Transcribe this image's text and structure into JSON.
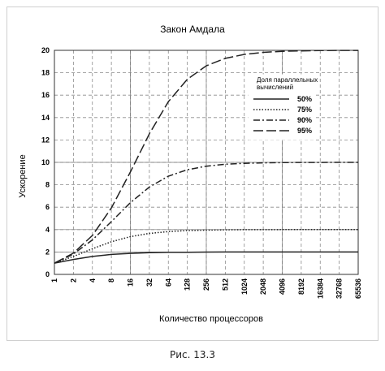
{
  "chart_data": {
    "type": "line",
    "title": "Закон Амдала",
    "xlabel": "Количество процессоров",
    "ylabel": "Ускорение",
    "x_scale": "log2",
    "x": [
      1,
      2,
      4,
      8,
      16,
      32,
      64,
      128,
      256,
      512,
      1024,
      2048,
      4096,
      8192,
      16384,
      32768,
      65536
    ],
    "x_tick_labels": [
      "1",
      "2",
      "4",
      "8",
      "16",
      "32",
      "64",
      "128",
      "256",
      "512",
      "1024",
      "2048",
      "4096",
      "8192",
      "16384",
      "32768",
      "65536"
    ],
    "ylim": [
      0,
      20
    ],
    "y_ticks": [
      0,
      2,
      4,
      6,
      8,
      10,
      12,
      14,
      16,
      18,
      20
    ],
    "grid": true,
    "legend": {
      "title": "Доля параллельных вычислений",
      "placement": "top-right"
    },
    "series": [
      {
        "name": "50%",
        "style": "solid",
        "values": [
          1.0,
          1.33,
          1.6,
          1.78,
          1.88,
          1.94,
          1.97,
          1.98,
          1.99,
          2.0,
          2.0,
          2.0,
          2.0,
          2.0,
          2.0,
          2.0,
          2.0
        ]
      },
      {
        "name": "75%",
        "style": "dotted",
        "values": [
          1.0,
          1.6,
          2.29,
          2.91,
          3.37,
          3.66,
          3.82,
          3.91,
          3.95,
          3.98,
          3.99,
          3.99,
          4.0,
          4.0,
          4.0,
          4.0,
          4.0
        ]
      },
      {
        "name": "90%",
        "style": "dashdot",
        "values": [
          1.0,
          1.82,
          3.08,
          4.71,
          6.4,
          7.8,
          8.77,
          9.34,
          9.66,
          9.83,
          9.91,
          9.96,
          9.98,
          9.99,
          9.99,
          10.0,
          10.0
        ]
      },
      {
        "name": "95%",
        "style": "longdash",
        "values": [
          1.0,
          1.9,
          3.48,
          5.93,
          9.14,
          12.55,
          15.42,
          17.41,
          18.62,
          19.28,
          19.64,
          19.82,
          19.91,
          19.95,
          19.98,
          19.99,
          19.99
        ]
      }
    ]
  },
  "caption": "Рис. 13.3"
}
